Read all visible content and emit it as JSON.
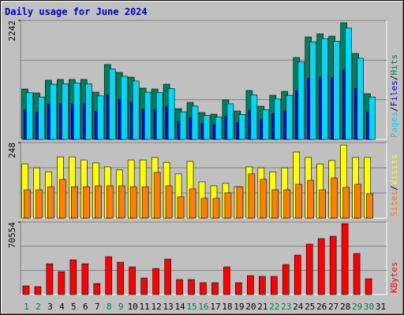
{
  "chart_data": {
    "type": "bar",
    "title": "Daily usage for June 2024",
    "categories": [
      1,
      2,
      3,
      4,
      5,
      6,
      7,
      8,
      9,
      10,
      11,
      12,
      13,
      14,
      15,
      16,
      17,
      18,
      19,
      20,
      21,
      22,
      23,
      24,
      25,
      26,
      27,
      28,
      29,
      30,
      31
    ],
    "weekend_days": [
      1,
      2,
      8,
      9,
      15,
      16,
      22,
      23,
      29,
      30
    ],
    "weekend_color": "#008040",
    "legend_separator": "/",
    "panels": [
      {
        "ylim": [
          0,
          2242
        ],
        "yticks": [
          2242
        ],
        "series": [
          {
            "name": "Hits",
            "color": "#00805c",
            "values": [
              950,
              876,
              1114,
              1129,
              1129,
              1129,
              891,
              1411,
              1262,
              1173,
              965,
              950,
              1040,
              579,
              698,
              505,
              475,
              743,
              535,
              921,
              624,
              832,
              906,
              1544,
              1931,
              1990,
              1945,
              2198,
              1619,
              861,
              null
            ]
          },
          {
            "name": "Files",
            "color": "#0000ff",
            "values": [
              560,
              510,
              660,
              670,
              670,
              670,
              530,
              840,
              750,
              700,
              570,
              560,
              620,
              340,
              410,
              300,
              280,
              440,
              320,
              550,
              370,
              490,
              540,
              920,
              1150,
              1180,
              1160,
              1310,
              960,
              510,
              null
            ]
          },
          {
            "name": "Pages",
            "color": "#00d8f8",
            "values": [
              880,
              800,
              1040,
              1050,
              1060,
              1050,
              820,
              1330,
              1190,
              1100,
              890,
              880,
              960,
              520,
              630,
              450,
              420,
              670,
              470,
              840,
              560,
              760,
              830,
              1460,
              1840,
              1900,
              1850,
              2100,
              1530,
              800,
              null
            ]
          }
        ]
      },
      {
        "ylim": [
          0,
          248
        ],
        "yticks": [
          248
        ],
        "series": [
          {
            "name": "Visits",
            "color": "#ffff00",
            "values": [
              178,
              165,
              152,
              201,
              201,
              191,
              181,
              168,
              158,
              191,
              191,
              199,
              183,
              145,
              186,
              119,
              106,
              114,
              103,
              168,
              165,
              152,
              165,
              217,
              199,
              178,
              189,
              240,
              199,
              199,
              null
            ]
          },
          {
            "name": "Sites",
            "color": "#ff8000",
            "values": [
              93,
              93,
              103,
              127,
              103,
              103,
              106,
              106,
              106,
              103,
              103,
              150,
              106,
              70,
              96,
              65,
              65,
              83,
              103,
              145,
              127,
              93,
              93,
              111,
              124,
              93,
              132,
              101,
              111,
              80,
              null
            ]
          }
        ]
      },
      {
        "ylim": [
          0,
          70554
        ],
        "yticks": [
          70554
        ],
        "series": [
          {
            "name": "KBytes",
            "color": "#ff0000",
            "values": [
              8437,
              7670,
              29913,
              22243,
              33748,
              29913,
              10738,
              36816,
              31447,
              26845,
              16107,
              25311,
              34515,
              14573,
              14573,
              11505,
              11505,
              26845,
              11505,
              18408,
              17641,
              17641,
              29146,
              38350,
              49088,
              54457,
              56758,
              69030,
              39884,
              15340,
              null
            ]
          }
        ]
      }
    ]
  }
}
